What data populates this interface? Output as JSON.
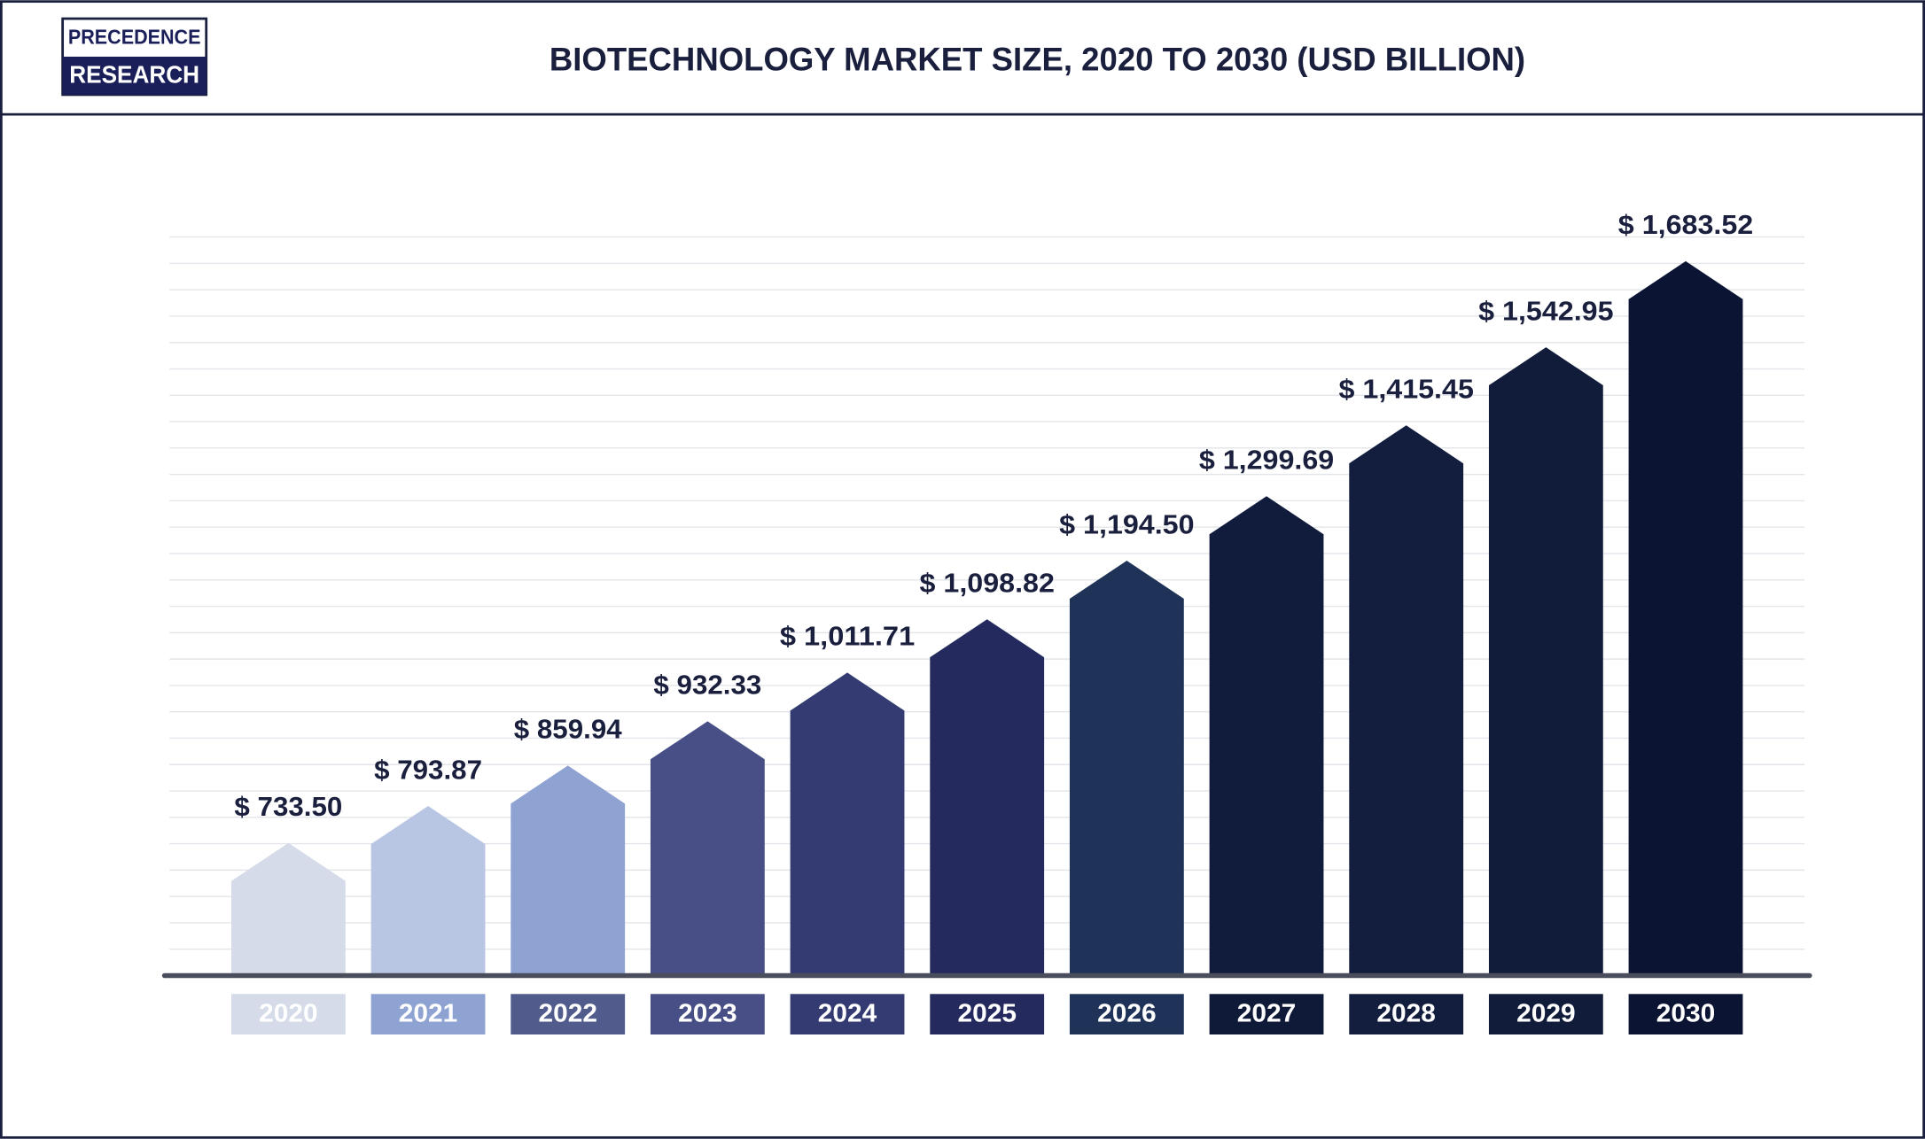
{
  "logo": {
    "line1": "PRECEDENCE",
    "line2": "RESEARCH"
  },
  "chart_data": {
    "type": "bar",
    "title": "BIOTECHNOLOGY MARKET SIZE, 2020 TO 2030 (USD BILLION)",
    "categories": [
      "2020",
      "2021",
      "2022",
      "2023",
      "2024",
      "2025",
      "2026",
      "2027",
      "2028",
      "2029",
      "2030"
    ],
    "values": [
      733.5,
      793.87,
      859.94,
      932.33,
      1011.71,
      1098.82,
      1194.5,
      1299.69,
      1415.45,
      1542.95,
      1683.52
    ],
    "value_labels": [
      "$ 733.50",
      "$ 793.87",
      "$ 859.94",
      "$ 932.33",
      "$ 1,011.71",
      "$ 1,098.82",
      "$ 1,194.50",
      "$ 1,299.69",
      "$ 1,415.45",
      "$ 1,542.95",
      "$ 1,683.52"
    ],
    "colors": [
      "#d5dbe9",
      "#b8c5e3",
      "#8fa3d3",
      "#474f86",
      "#333b72",
      "#252a5e",
      "#1f3358",
      "#111b3c",
      "#131d3d",
      "#111c3a",
      "#0b1433"
    ],
    "category_colors": [
      "#d5dbe9",
      "#8fa3d3",
      "#525c8c",
      "#474f86",
      "#333b72",
      "#252a5e",
      "#1f3358",
      "#0f1a38",
      "#131d3d",
      "#111c3a",
      "#0b1433"
    ],
    "ylim": [
      517,
      1723
    ]
  }
}
